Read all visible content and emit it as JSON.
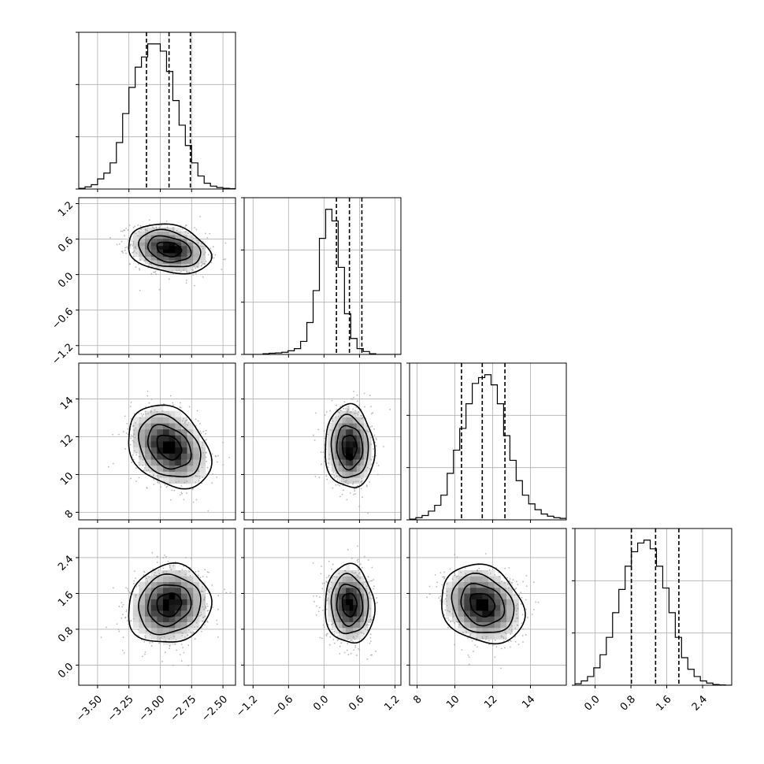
{
  "chart_data": {
    "type": "corner",
    "grid": true,
    "title": "",
    "xlabel": "",
    "ylabel": "",
    "parameters": [
      {
        "range": [
          -3.65,
          -2.4
        ],
        "ticks": [
          -3.5,
          -3.25,
          -3.0,
          -2.75,
          -2.5
        ],
        "tick_labels": [
          "−3.50",
          "−3.25",
          "−3.00",
          "−2.75",
          "−2.50"
        ],
        "quantiles": [
          -3.11,
          -2.93,
          -2.76
        ],
        "hist": [
          0.5,
          1.5,
          3,
          7,
          11,
          18,
          32,
          52,
          70,
          84,
          91,
          100,
          100,
          95,
          81,
          61,
          44,
          30,
          18,
          9,
          4,
          2,
          1,
          0.5,
          0.3
        ]
      },
      {
        "range": [
          -1.35,
          1.3
        ],
        "ticks": [
          -1.2,
          -0.6,
          0.0,
          0.6,
          1.2
        ],
        "tick_labels": [
          "−1.2",
          "−0.6",
          "0.0",
          "0.6",
          "1.2"
        ],
        "quantiles": [
          0.21,
          0.43,
          0.64
        ],
        "hist": [
          0,
          0,
          0,
          0.5,
          0.8,
          1,
          1.5,
          2.5,
          4,
          9,
          22,
          44,
          80,
          100,
          92,
          60,
          28,
          11,
          4,
          2,
          0.5,
          0,
          0,
          0,
          0
        ]
      },
      {
        "range": [
          7.6,
          15.9
        ],
        "ticks": [
          8,
          10,
          12,
          14
        ],
        "tick_labels": [
          "8",
          "10",
          "12",
          "14"
        ],
        "quantiles": [
          10.35,
          11.45,
          12.65
        ],
        "hist": [
          0.5,
          1.5,
          3,
          6,
          10,
          17,
          32,
          48,
          63,
          80,
          94,
          98,
          100,
          93,
          80,
          58,
          41,
          27,
          17,
          11,
          7,
          4,
          2.5,
          1.5,
          1
        ]
      },
      {
        "range": [
          -0.45,
          3.05
        ],
        "ticks": [
          0.0,
          0.8,
          1.6,
          2.4
        ],
        "tick_labels": [
          "0.0",
          "0.8",
          "1.6",
          "2.4"
        ],
        "quantiles": [
          0.81,
          1.35,
          1.87
        ],
        "hist": [
          1,
          3,
          6,
          12,
          21,
          33,
          50,
          66,
          82,
          92,
          98,
          100,
          94,
          82,
          67,
          50,
          33,
          19,
          11,
          6,
          3,
          1.5,
          0.5,
          0.2,
          0
        ]
      }
    ],
    "correlations": [
      [
        1.0,
        -0.25,
        -0.3,
        0.1
      ],
      [
        -0.25,
        1.0,
        -0.05,
        -0.05
      ],
      [
        -0.3,
        -0.05,
        1.0,
        -0.2
      ],
      [
        0.1,
        -0.05,
        -0.2,
        1.0
      ]
    ],
    "stdevs": [
      0.15,
      0.19,
      1.0,
      0.4
    ],
    "means": [
      -2.93,
      0.43,
      11.45,
      1.35
    ]
  }
}
